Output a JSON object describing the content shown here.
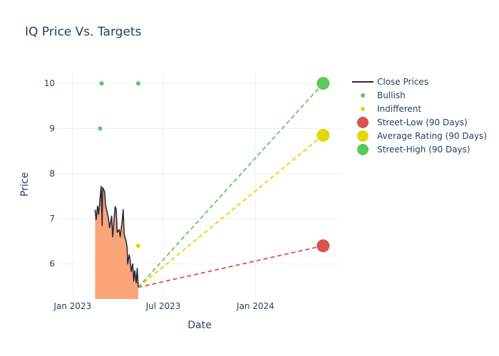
{
  "chart_data": {
    "type": "line",
    "title": "IQ Price Vs. Targets",
    "xlabel": "Date",
    "ylabel": "Price",
    "grid": true,
    "legend_position": "right",
    "xlim": [
      "2022-12-01",
      "2024-06-22"
    ],
    "ylim": [
      5.22,
      10.27
    ],
    "x_ticks": [
      {
        "date": "2023-01-01",
        "label": "Jan 2023"
      },
      {
        "date": "2023-07-01",
        "label": "Jul 2023"
      },
      {
        "date": "2024-01-01",
        "label": "Jan 2024"
      }
    ],
    "y_ticks": [
      6,
      7,
      8,
      9,
      10
    ],
    "legend": [
      "Close Prices",
      "Bullish",
      "Indifferent",
      "Street-Low (90 Days)",
      "Average Rating (90 Days)",
      "Street-High (90 Days)"
    ],
    "colors": {
      "close": "#2a2a3e",
      "area": "#f9a577",
      "bullish": "#5cc85c",
      "indifferent": "#e0d800",
      "street_low": "#d9534f",
      "average": "#e0d800",
      "street_high": "#5cc85c",
      "grid": "#ebf0f8"
    },
    "close_prices": [
      {
        "date": "2023-02-15",
        "value": 7.2
      },
      {
        "date": "2023-02-17",
        "value": 6.98
      },
      {
        "date": "2023-02-20",
        "value": 7.28
      },
      {
        "date": "2023-02-22",
        "value": 7.1
      },
      {
        "date": "2023-02-24",
        "value": 7.34
      },
      {
        "date": "2023-02-27",
        "value": 7.72
      },
      {
        "date": "2023-03-01",
        "value": 6.85
      },
      {
        "date": "2023-03-02",
        "value": 7.69
      },
      {
        "date": "2023-03-06",
        "value": 7.6
      },
      {
        "date": "2023-03-08",
        "value": 7.28
      },
      {
        "date": "2023-03-10",
        "value": 7.2
      },
      {
        "date": "2023-03-13",
        "value": 7.05
      },
      {
        "date": "2023-03-16",
        "value": 6.8
      },
      {
        "date": "2023-03-20",
        "value": 7.06
      },
      {
        "date": "2023-03-22",
        "value": 6.6
      },
      {
        "date": "2023-03-24",
        "value": 6.86
      },
      {
        "date": "2023-03-27",
        "value": 7.27
      },
      {
        "date": "2023-03-29",
        "value": 7.2
      },
      {
        "date": "2023-03-31",
        "value": 6.7
      },
      {
        "date": "2023-04-04",
        "value": 6.76
      },
      {
        "date": "2023-04-06",
        "value": 6.6
      },
      {
        "date": "2023-04-10",
        "value": 6.95
      },
      {
        "date": "2023-04-12",
        "value": 7.2
      },
      {
        "date": "2023-04-14",
        "value": 6.65
      },
      {
        "date": "2023-04-18",
        "value": 6.5
      },
      {
        "date": "2023-04-20",
        "value": 6.35
      },
      {
        "date": "2023-04-21",
        "value": 6.0
      },
      {
        "date": "2023-04-24",
        "value": 6.2
      },
      {
        "date": "2023-04-26",
        "value": 6.09
      },
      {
        "date": "2023-04-28",
        "value": 5.83
      },
      {
        "date": "2023-05-01",
        "value": 6.0
      },
      {
        "date": "2023-05-03",
        "value": 5.62
      },
      {
        "date": "2023-05-05",
        "value": 5.85
      },
      {
        "date": "2023-05-08",
        "value": 5.58
      },
      {
        "date": "2023-05-10",
        "value": 5.9
      },
      {
        "date": "2023-05-12",
        "value": 5.48
      }
    ],
    "bullish": [
      {
        "date": "2023-02-25",
        "value": 9.0
      },
      {
        "date": "2023-02-28",
        "value": 10.0
      },
      {
        "date": "2023-05-12",
        "value": 10.0
      }
    ],
    "indifferent": [
      {
        "date": "2023-05-12",
        "value": 6.4
      }
    ],
    "targets": {
      "start": {
        "date": "2023-05-12",
        "value": 5.48
      },
      "end_date": "2024-05-15",
      "street_low": 6.4,
      "average": 8.85,
      "street_high": 10.0
    }
  }
}
